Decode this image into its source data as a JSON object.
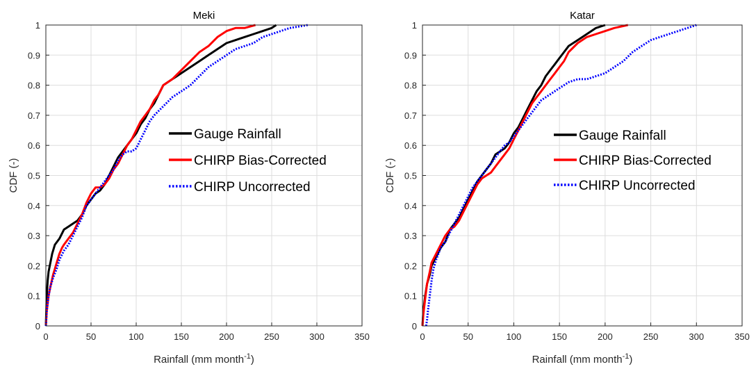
{
  "chart_data": [
    {
      "type": "line",
      "title": "Meki",
      "xlabel_main": "Rainfall (mm month",
      "xlabel_sup": "-1",
      "xlabel_end": ")",
      "ylabel": "CDF (-)",
      "xlim": [
        0,
        350
      ],
      "ylim": [
        0,
        1
      ],
      "xticks": [
        "0",
        "50",
        "100",
        "150",
        "200",
        "250",
        "300",
        "350"
      ],
      "yticks": [
        "0",
        "0.1",
        "0.2",
        "0.3",
        "0.4",
        "0.5",
        "0.6",
        "0.7",
        "0.8",
        "0.9",
        "1"
      ],
      "grid": true,
      "legend_position": "center-right",
      "series": [
        {
          "name": "Gauge Rainfall",
          "color": "#000000",
          "style": "solid",
          "x": [
            0,
            1,
            2,
            3,
            5,
            7,
            10,
            15,
            20,
            25,
            30,
            35,
            40,
            45,
            50,
            55,
            60,
            65,
            70,
            75,
            80,
            85,
            90,
            95,
            100,
            105,
            110,
            115,
            120,
            125,
            130,
            140,
            150,
            160,
            170,
            180,
            190,
            200,
            210,
            220,
            230,
            240,
            250,
            255
          ],
          "y": [
            0,
            0.1,
            0.15,
            0.18,
            0.21,
            0.24,
            0.27,
            0.29,
            0.32,
            0.33,
            0.34,
            0.35,
            0.37,
            0.4,
            0.42,
            0.44,
            0.45,
            0.47,
            0.5,
            0.53,
            0.56,
            0.58,
            0.6,
            0.62,
            0.64,
            0.67,
            0.69,
            0.72,
            0.74,
            0.77,
            0.8,
            0.82,
            0.84,
            0.86,
            0.88,
            0.9,
            0.92,
            0.94,
            0.95,
            0.96,
            0.97,
            0.98,
            0.99,
            1.0
          ]
        },
        {
          "name": "CHIRP Bias-Corrected",
          "color": "#ff0000",
          "style": "solid",
          "x": [
            0,
            1,
            3,
            5,
            8,
            12,
            15,
            18,
            20,
            25,
            30,
            35,
            40,
            45,
            50,
            55,
            60,
            65,
            70,
            75,
            80,
            85,
            90,
            95,
            100,
            105,
            110,
            115,
            120,
            125,
            130,
            140,
            150,
            160,
            170,
            180,
            190,
            200,
            210,
            220,
            232
          ],
          "y": [
            0,
            0.05,
            0.1,
            0.13,
            0.17,
            0.21,
            0.24,
            0.26,
            0.27,
            0.29,
            0.31,
            0.34,
            0.37,
            0.41,
            0.44,
            0.46,
            0.46,
            0.47,
            0.49,
            0.52,
            0.54,
            0.57,
            0.6,
            0.62,
            0.65,
            0.68,
            0.7,
            0.72,
            0.75,
            0.77,
            0.8,
            0.82,
            0.85,
            0.88,
            0.91,
            0.93,
            0.96,
            0.98,
            0.99,
            0.99,
            1.0
          ]
        },
        {
          "name": "CHIRP Uncorrected",
          "color": "#0000ff",
          "style": "dotted",
          "x": [
            0,
            1,
            3,
            5,
            8,
            12,
            15,
            20,
            25,
            30,
            35,
            40,
            45,
            50,
            55,
            60,
            65,
            70,
            75,
            80,
            85,
            90,
            95,
            100,
            105,
            110,
            115,
            120,
            130,
            140,
            150,
            160,
            170,
            180,
            190,
            200,
            210,
            220,
            230,
            240,
            250,
            260,
            270,
            280,
            290
          ],
          "y": [
            0,
            0.05,
            0.1,
            0.13,
            0.16,
            0.19,
            0.22,
            0.25,
            0.27,
            0.3,
            0.33,
            0.36,
            0.4,
            0.42,
            0.44,
            0.46,
            0.48,
            0.5,
            0.52,
            0.55,
            0.57,
            0.58,
            0.58,
            0.59,
            0.62,
            0.65,
            0.68,
            0.7,
            0.73,
            0.76,
            0.78,
            0.8,
            0.83,
            0.86,
            0.88,
            0.9,
            0.92,
            0.93,
            0.94,
            0.96,
            0.97,
            0.98,
            0.99,
            0.995,
            1.0
          ]
        }
      ]
    },
    {
      "type": "line",
      "title": "Katar",
      "xlabel_main": "Rainfall (mm month",
      "xlabel_sup": "-1",
      "xlabel_end": ")",
      "ylabel": "CDF (-)",
      "xlim": [
        0,
        350
      ],
      "ylim": [
        0,
        1
      ],
      "xticks": [
        "0",
        "50",
        "100",
        "150",
        "200",
        "250",
        "300",
        "350"
      ],
      "yticks": [
        "0",
        "0.1",
        "0.2",
        "0.3",
        "0.4",
        "0.5",
        "0.6",
        "0.7",
        "0.8",
        "0.9",
        "1"
      ],
      "grid": true,
      "legend_position": "center-right",
      "series": [
        {
          "name": "Gauge Rainfall",
          "color": "#000000",
          "style": "solid",
          "x": [
            0,
            1,
            3,
            5,
            8,
            10,
            15,
            20,
            25,
            30,
            35,
            40,
            45,
            50,
            55,
            60,
            65,
            70,
            75,
            80,
            85,
            90,
            95,
            100,
            105,
            110,
            115,
            120,
            125,
            130,
            135,
            140,
            145,
            150,
            155,
            160,
            170,
            180,
            190,
            200
          ],
          "y": [
            0,
            0.05,
            0.1,
            0.14,
            0.17,
            0.2,
            0.23,
            0.26,
            0.28,
            0.32,
            0.34,
            0.36,
            0.39,
            0.42,
            0.45,
            0.48,
            0.5,
            0.52,
            0.54,
            0.57,
            0.58,
            0.59,
            0.61,
            0.64,
            0.66,
            0.69,
            0.72,
            0.75,
            0.78,
            0.8,
            0.83,
            0.85,
            0.87,
            0.89,
            0.91,
            0.93,
            0.95,
            0.97,
            0.99,
            1.0
          ]
        },
        {
          "name": "CHIRP Bias-Corrected",
          "color": "#ff0000",
          "style": "solid",
          "x": [
            0,
            1,
            3,
            5,
            8,
            10,
            15,
            20,
            25,
            30,
            35,
            40,
            45,
            50,
            55,
            60,
            65,
            70,
            75,
            80,
            85,
            90,
            95,
            100,
            105,
            110,
            115,
            120,
            125,
            130,
            135,
            140,
            145,
            150,
            155,
            160,
            170,
            180,
            190,
            200,
            210,
            225
          ],
          "y": [
            0,
            0.04,
            0.09,
            0.14,
            0.18,
            0.21,
            0.24,
            0.27,
            0.3,
            0.32,
            0.33,
            0.35,
            0.38,
            0.41,
            0.44,
            0.47,
            0.49,
            0.5,
            0.51,
            0.53,
            0.55,
            0.57,
            0.59,
            0.62,
            0.65,
            0.68,
            0.71,
            0.74,
            0.76,
            0.78,
            0.8,
            0.82,
            0.84,
            0.86,
            0.88,
            0.91,
            0.94,
            0.96,
            0.97,
            0.98,
            0.99,
            1.0
          ]
        },
        {
          "name": "CHIRP Uncorrected",
          "color": "#0000ff",
          "style": "dotted",
          "x": [
            4,
            5,
            6,
            8,
            10,
            12,
            15,
            20,
            25,
            30,
            35,
            40,
            45,
            50,
            55,
            60,
            65,
            70,
            75,
            80,
            85,
            90,
            95,
            100,
            105,
            110,
            115,
            120,
            125,
            130,
            140,
            150,
            160,
            170,
            180,
            190,
            200,
            210,
            220,
            230,
            240,
            250,
            260,
            270,
            280,
            290,
            300
          ],
          "y": [
            0,
            0.02,
            0.05,
            0.1,
            0.15,
            0.19,
            0.22,
            0.26,
            0.28,
            0.31,
            0.34,
            0.37,
            0.4,
            0.43,
            0.46,
            0.48,
            0.5,
            0.52,
            0.54,
            0.56,
            0.58,
            0.6,
            0.61,
            0.63,
            0.65,
            0.67,
            0.69,
            0.71,
            0.73,
            0.75,
            0.77,
            0.79,
            0.81,
            0.82,
            0.82,
            0.83,
            0.84,
            0.86,
            0.88,
            0.91,
            0.93,
            0.95,
            0.96,
            0.97,
            0.98,
            0.99,
            1.0
          ]
        }
      ]
    }
  ]
}
